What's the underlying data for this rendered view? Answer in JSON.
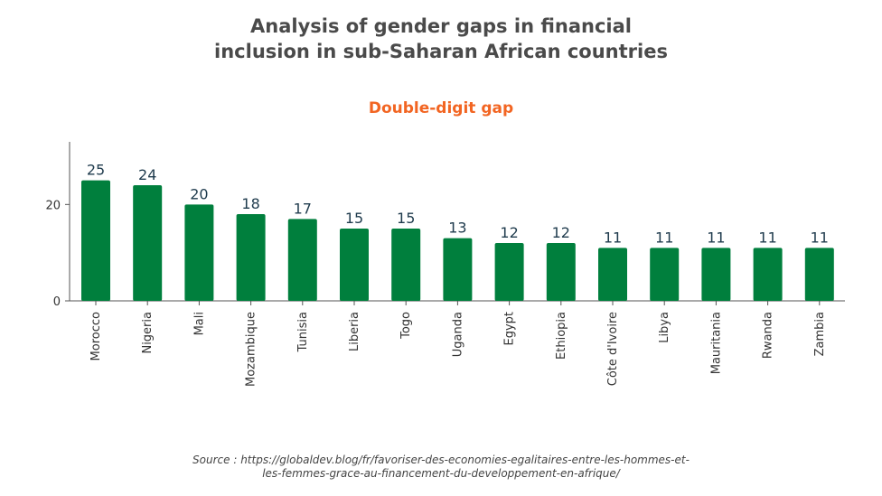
{
  "title_lines": [
    "Analysis of gender gaps in financial",
    "inclusion in sub-Saharan African countries"
  ],
  "chart_data": {
    "type": "bar",
    "subtitle": "Double-digit gap",
    "categories": [
      "Morocco",
      "Nigeria",
      "Mali",
      "Mozambique",
      "Tunisia",
      "Liberia",
      "Togo",
      "Uganda",
      "Egypt",
      "Ethiopia",
      "Côte d'Ivoire",
      "Libya",
      "Mauritania",
      "Rwanda",
      "Zambia"
    ],
    "values": [
      25,
      24,
      20,
      18,
      17,
      15,
      15,
      13,
      12,
      12,
      11,
      11,
      11,
      11,
      11
    ],
    "ylim": [
      0,
      33
    ],
    "yticks": [
      0,
      20
    ],
    "bar_color": "#007f3d",
    "label_color": "#1f3b4d",
    "grid": false
  },
  "source_lines": [
    "Source : https://globaldev.blog/fr/favoriser-des-economies-egalitaires-entre-les-hommes-et-",
    "les-femmes-grace-au-financement-du-developpement-en-afrique/"
  ]
}
